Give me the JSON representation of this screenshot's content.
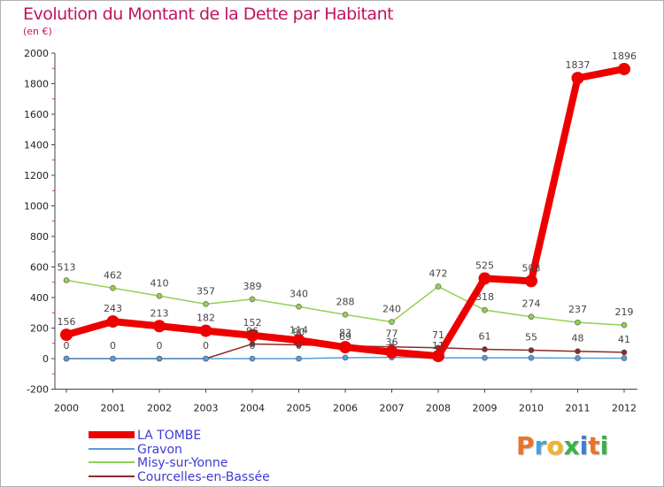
{
  "title": "Evolution du Montant de la Dette par Habitant",
  "subtitle": "(en €)",
  "logo": {
    "text": "Proxiti",
    "letter_colors": [
      "#e8742a",
      "#4aa0d8",
      "#f0b429",
      "#3cb04a",
      "#3c7fd6",
      "#e8742a",
      "#3cb04a"
    ]
  },
  "chart_data": {
    "type": "line",
    "title": "Evolution du Montant de la Dette par Habitant",
    "ylabel": "(en €)",
    "xlabel": "",
    "x": [
      "2000",
      "2001",
      "2002",
      "2003",
      "2004",
      "2005",
      "2006",
      "2007",
      "2008",
      "2009",
      "2010",
      "2011",
      "2012"
    ],
    "ylim": [
      -200,
      2000
    ],
    "yticks": [
      -200,
      0,
      200,
      400,
      600,
      800,
      1000,
      1200,
      1400,
      1600,
      1800,
      2000
    ],
    "grid": false,
    "legend_position": "bottom-left",
    "series": [
      {
        "name": "LA TOMBE",
        "color": "#ee0000",
        "width": 8,
        "values": [
          156,
          243,
          213,
          182,
          152,
          120,
          75,
          42,
          17,
          525,
          508,
          1837,
          1896
        ],
        "labels": [
          "156",
          "243",
          "213",
          "182",
          "152",
          "",
          "",
          "",
          "",
          "525",
          "508",
          "1837",
          "1896"
        ]
      },
      {
        "name": "Gravon",
        "color": "#5b9bd5",
        "width": 1.5,
        "values": [
          0,
          0,
          0,
          0,
          0,
          0,
          6,
          8,
          5,
          5,
          5,
          3,
          3
        ],
        "labels": [
          "",
          "",
          "",
          "",
          "0",
          "0",
          "",
          "",
          "",
          "",
          "",
          "",
          ""
        ]
      },
      {
        "name": "Misy-sur-Yonne",
        "color": "#92d050",
        "width": 1.5,
        "values": [
          513,
          462,
          410,
          357,
          389,
          340,
          288,
          240,
          472,
          318,
          274,
          237,
          219
        ],
        "labels": [
          "513",
          "462",
          "410",
          "357",
          "389",
          "340",
          "288",
          "240",
          "472",
          "318",
          "274",
          "237",
          "219"
        ]
      },
      {
        "name": "Courcelles-en-Bassée",
        "color": "#8b2a2a",
        "width": 1.5,
        "values": [
          0,
          0,
          0,
          0,
          96,
          90,
          83,
          77,
          71,
          61,
          55,
          48,
          41
        ],
        "labels": [
          "0",
          "0",
          "0",
          "0",
          "96",
          "90",
          "83",
          "77",
          "71",
          "61",
          "55",
          "48",
          "41"
        ]
      }
    ],
    "extra_labels": [
      {
        "year": "2005",
        "value": 114,
        "text": "114"
      },
      {
        "year": "2006",
        "value": 69,
        "text": "69"
      },
      {
        "year": "2007",
        "value": 36,
        "text": "36"
      },
      {
        "year": "2008",
        "value": 11,
        "text": "11"
      }
    ]
  }
}
